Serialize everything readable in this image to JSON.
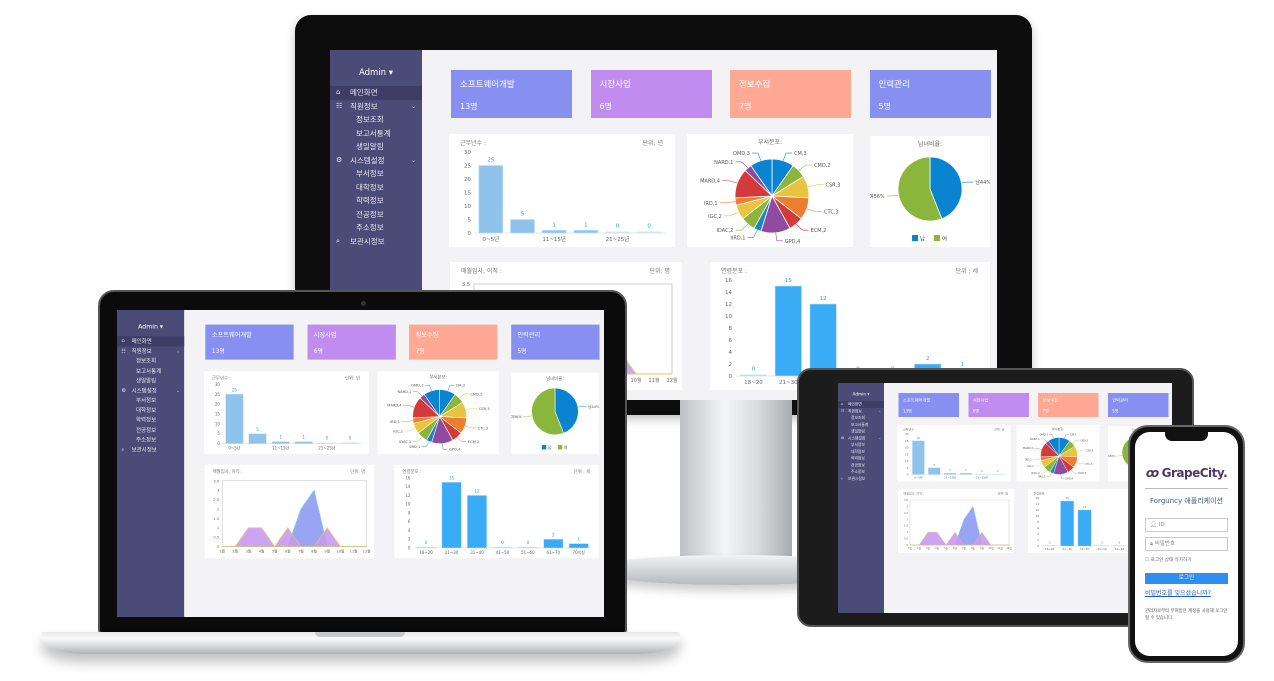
{
  "dashboard": {
    "admin": "Admin ▾",
    "menu": [
      {
        "label": "메인화면",
        "icon": "home-icon",
        "level": "top",
        "active": true
      },
      {
        "label": "직원정보",
        "icon": "people-icon",
        "level": "top",
        "chevron": true
      },
      {
        "label": "정보조회",
        "level": "sub"
      },
      {
        "label": "보고서통계",
        "level": "sub"
      },
      {
        "label": "생일알림",
        "level": "sub"
      },
      {
        "label": "시스템설정",
        "icon": "gear-icon",
        "level": "top",
        "chevron": true
      },
      {
        "label": "부서정보",
        "level": "sub"
      },
      {
        "label": "대학정보",
        "level": "sub"
      },
      {
        "label": "학력정보",
        "level": "sub"
      },
      {
        "label": "전공정보",
        "level": "sub"
      },
      {
        "label": "주소정보",
        "level": "sub"
      },
      {
        "label": "보관시정보",
        "icon": "search-icon",
        "level": "top"
      }
    ],
    "cards": [
      {
        "title": "소프트웨어개발",
        "count": "13명",
        "color": "#8790f0"
      },
      {
        "title": "시장사업",
        "count": "6명",
        "color": "#c08cf0"
      },
      {
        "title": "정보수집",
        "count": "7명",
        "color": "#ffa893"
      },
      {
        "title": "인력관리",
        "count": "5명",
        "color": "#8790f0"
      }
    ]
  },
  "chart_data": [
    {
      "type": "bar",
      "title": "근무년수 :",
      "unit": "단위: 년",
      "categories": [
        "0~5년",
        "",
        "11~15년",
        "",
        "21~25년",
        ""
      ],
      "values": [
        25,
        5,
        1,
        1,
        0,
        0
      ],
      "ylim": [
        0,
        30
      ],
      "yticks": [
        0,
        5,
        10,
        15,
        20,
        25,
        30
      ],
      "color": "#8fc3ec"
    },
    {
      "type": "pie",
      "title": "부서분포:",
      "slices": [
        {
          "label": "CM,3",
          "value": 3,
          "color": "#0a84d0"
        },
        {
          "label": "CMD,2",
          "value": 2,
          "color": "#8ab63c"
        },
        {
          "label": "CSR,3",
          "value": 3,
          "color": "#e9c440"
        },
        {
          "label": "CTC,3",
          "value": 3,
          "color": "#ed7d31"
        },
        {
          "label": "ECM,2",
          "value": 2,
          "color": "#d33a3a"
        },
        {
          "label": "GPD,4",
          "value": 4,
          "color": "#8e4ba0"
        },
        {
          "label": "IIRD,1",
          "value": 1,
          "color": "#1d83c9"
        },
        {
          "label": "IDAC,2",
          "value": 2,
          "color": "#8ab63c"
        },
        {
          "label": "IGC,2",
          "value": 2,
          "color": "#e9c440"
        },
        {
          "label": "IRD,1",
          "value": 1,
          "color": "#ed7d31"
        },
        {
          "label": "MARD,4",
          "value": 4,
          "color": "#d33a3a"
        },
        {
          "label": "NARD,1",
          "value": 1,
          "color": "#8e4ba0"
        },
        {
          "label": "OMD,3",
          "value": 3,
          "color": "#0a84d0"
        }
      ]
    },
    {
      "type": "pie",
      "title": "남녀비율:",
      "slices": [
        {
          "label": "남44%",
          "legend": "남",
          "value": 44,
          "color": "#0a84d0"
        },
        {
          "label": "여56%",
          "legend": "여",
          "value": 56,
          "color": "#8ab63c"
        }
      ],
      "legend": "bottom"
    },
    {
      "type": "area",
      "title": "매월입사, 이직 :",
      "unit": "단위: 명",
      "categories": [
        "1월",
        "2월",
        "3월",
        "4월",
        "5월",
        "6월",
        "7월",
        "8월",
        "9월",
        "10월",
        "11월",
        "12월"
      ],
      "series": [
        {
          "values": [
            0,
            0,
            0,
            0,
            0,
            0,
            2,
            3,
            0,
            0,
            0,
            0
          ],
          "color": "#8f9cf3"
        },
        {
          "values": [
            0,
            0,
            1,
            1,
            0,
            1,
            0,
            0,
            1,
            0,
            0,
            0
          ],
          "color": "#c79bf2"
        }
      ],
      "ylim": [
        0,
        3.5
      ],
      "yticks": [
        "0",
        "0.5",
        "1",
        "1.5",
        "2",
        "2.5",
        "3",
        "3.5"
      ]
    },
    {
      "type": "bar",
      "title": "연령분포 :",
      "unit": "단위 : 세",
      "categories": [
        "18~20",
        "21~30",
        "31~40",
        "41~50",
        "51~60",
        "61~70",
        "70이상"
      ],
      "values": [
        0,
        15,
        12,
        0,
        0,
        2,
        1
      ],
      "ylim": [
        0,
        16
      ],
      "yticks": [
        0,
        2,
        4,
        6,
        8,
        10,
        12,
        14,
        16
      ],
      "color": "#3aacf5"
    }
  ],
  "phone": {
    "logo": "GrapeCity.",
    "app_title": "Forguncy 애플리케이션",
    "id_placeholder": "ID",
    "pw_placeholder": "비밀번호",
    "remember": "로그인 상태 유지하기",
    "login": "로그인",
    "forgot": "비밀번호를 잊으셨습니까?",
    "note": "관리자로부터 부여받은 계정을 사용해 로그인할 수 있습니다."
  }
}
